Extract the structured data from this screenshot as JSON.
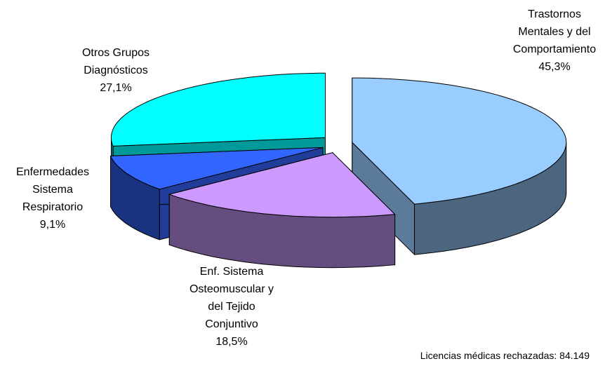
{
  "chart_data": {
    "type": "pie",
    "categories": [
      [
        "Trastornos",
        "Mentales y del",
        "Comportamiento"
      ],
      [
        "Enf. Sistema",
        "Osteomuscular y",
        "del Tejido",
        "Conjuntivo"
      ],
      [
        "Enfermedades",
        "Sistema",
        "Respiratorio"
      ],
      [
        "Otros Grupos",
        "Diagnósticos"
      ]
    ],
    "values": [
      45.3,
      18.5,
      9.1,
      27.1
    ],
    "value_labels": [
      "45,3%",
      "18,5%",
      "9,1%",
      "27,1%"
    ],
    "colors": [
      "#99ccff",
      "#cc99ff",
      "#3366ff",
      "#00ffff"
    ],
    "annotation": "Licencias médicas rechazadas: 84.149"
  }
}
